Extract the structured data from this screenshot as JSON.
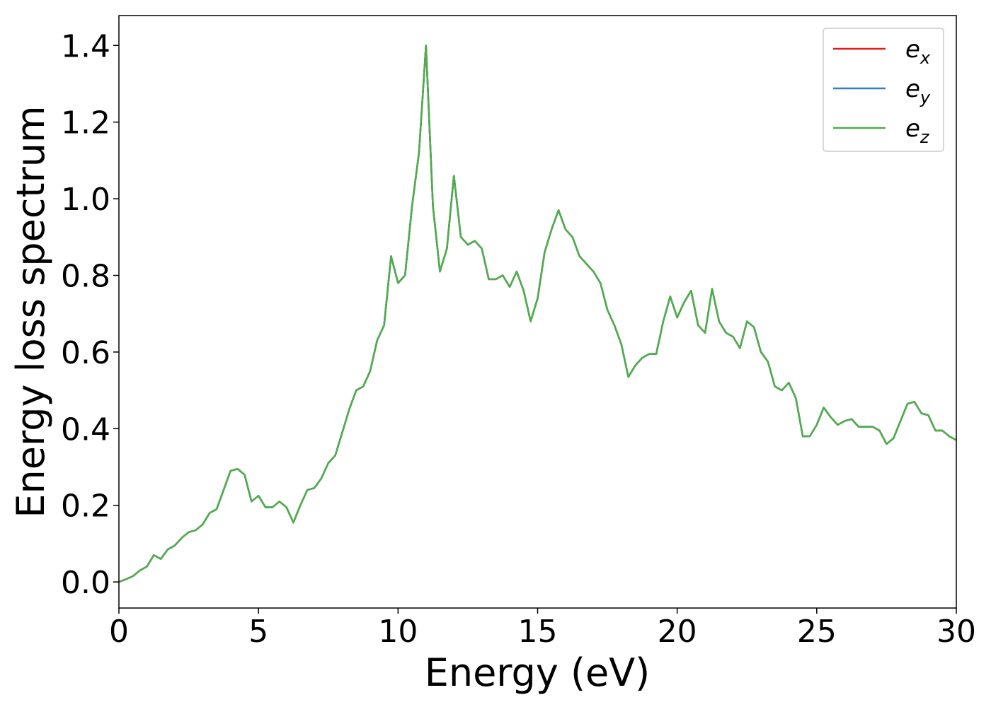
{
  "chart_data": {
    "type": "line",
    "x_label": "Energy (eV)",
    "y_label": "Energy loss spectrum",
    "xlim": [
      0,
      30
    ],
    "ylim": [
      -0.068,
      1.478
    ],
    "xticks": [
      0,
      5,
      10,
      15,
      20,
      25,
      30
    ],
    "yticks": [
      {
        "value": 0,
        "label": "0.0"
      },
      0.2,
      0.4,
      0.6,
      0.8,
      {
        "value": 1,
        "label": "1.0"
      },
      1.2,
      1.4
    ],
    "legend": "upper right",
    "x": [
      0,
      0.25,
      0.5,
      0.75,
      1,
      1.25,
      1.5,
      1.75,
      2,
      2.25,
      2.5,
      2.75,
      3,
      3.25,
      3.5,
      3.75,
      4,
      4.25,
      4.5,
      4.75,
      5,
      5.25,
      5.5,
      5.75,
      6,
      6.25,
      6.5,
      6.75,
      7,
      7.25,
      7.5,
      7.75,
      8,
      8.25,
      8.5,
      8.75,
      9,
      9.25,
      9.5,
      9.75,
      10,
      10.25,
      10.5,
      10.75,
      11,
      11.25,
      11.5,
      11.75,
      12,
      12.25,
      12.5,
      12.75,
      13,
      13.25,
      13.5,
      13.75,
      14,
      14.25,
      14.5,
      14.75,
      15,
      15.25,
      15.5,
      15.75,
      16,
      16.25,
      16.5,
      16.75,
      17,
      17.25,
      17.5,
      17.75,
      18,
      18.25,
      18.5,
      18.75,
      19,
      19.25,
      19.5,
      19.75,
      20,
      20.25,
      20.5,
      20.75,
      21,
      21.25,
      21.5,
      21.75,
      22,
      22.25,
      22.5,
      22.75,
      23,
      23.25,
      23.5,
      23.75,
      24,
      24.25,
      24.5,
      24.75,
      25,
      25.25,
      25.5,
      25.75,
      26,
      26.25,
      26.5,
      26.75,
      27,
      27.25,
      27.5,
      27.75,
      28,
      28.25,
      28.5,
      28.75,
      29,
      29.25,
      29.5,
      29.75,
      30
    ],
    "series": [
      {
        "name": "e_x",
        "color": "#e41a1c",
        "values": [
          0,
          0.007,
          0.015,
          0.03,
          0.04,
          0.07,
          0.06,
          0.085,
          0.095,
          0.115,
          0.13,
          0.135,
          0.15,
          0.18,
          0.19,
          0.24,
          0.29,
          0.295,
          0.28,
          0.21,
          0.225,
          0.195,
          0.195,
          0.21,
          0.195,
          0.155,
          0.2,
          0.24,
          0.245,
          0.27,
          0.31,
          0.33,
          0.39,
          0.45,
          0.5,
          0.51,
          0.55,
          0.63,
          0.67,
          0.85,
          0.78,
          0.8,
          0.98,
          1.12,
          1.4,
          0.98,
          0.81,
          0.87,
          1.06,
          0.9,
          0.88,
          0.89,
          0.87,
          0.79,
          0.79,
          0.8,
          0.77,
          0.81,
          0.76,
          0.68,
          0.74,
          0.86,
          0.92,
          0.97,
          0.92,
          0.9,
          0.85,
          0.83,
          0.81,
          0.78,
          0.71,
          0.67,
          0.62,
          0.535,
          0.565,
          0.585,
          0.595,
          0.595,
          0.68,
          0.745,
          0.69,
          0.73,
          0.76,
          0.67,
          0.65,
          0.765,
          0.68,
          0.65,
          0.64,
          0.61,
          0.68,
          0.665,
          0.6,
          0.575,
          0.51,
          0.5,
          0.52,
          0.48,
          0.38,
          0.38,
          0.41,
          0.455,
          0.43,
          0.41,
          0.42,
          0.425,
          0.405,
          0.405,
          0.405,
          0.395,
          0.36,
          0.375,
          0.42,
          0.465,
          0.47,
          0.44,
          0.435,
          0.395,
          0.395,
          0.38,
          0.37
        ]
      },
      {
        "name": "e_y",
        "color": "#377eb8",
        "values": [
          0,
          0.007,
          0.015,
          0.03,
          0.04,
          0.07,
          0.06,
          0.085,
          0.095,
          0.115,
          0.13,
          0.135,
          0.15,
          0.18,
          0.19,
          0.24,
          0.29,
          0.295,
          0.28,
          0.21,
          0.225,
          0.195,
          0.195,
          0.21,
          0.195,
          0.155,
          0.2,
          0.24,
          0.245,
          0.27,
          0.31,
          0.33,
          0.39,
          0.45,
          0.5,
          0.51,
          0.55,
          0.63,
          0.67,
          0.85,
          0.78,
          0.8,
          0.98,
          1.12,
          1.4,
          0.98,
          0.81,
          0.87,
          1.06,
          0.9,
          0.88,
          0.89,
          0.87,
          0.79,
          0.79,
          0.8,
          0.77,
          0.81,
          0.76,
          0.68,
          0.74,
          0.86,
          0.92,
          0.97,
          0.92,
          0.9,
          0.85,
          0.83,
          0.81,
          0.78,
          0.71,
          0.67,
          0.62,
          0.535,
          0.565,
          0.585,
          0.595,
          0.595,
          0.68,
          0.745,
          0.69,
          0.73,
          0.76,
          0.67,
          0.65,
          0.765,
          0.68,
          0.65,
          0.64,
          0.61,
          0.68,
          0.665,
          0.6,
          0.575,
          0.51,
          0.5,
          0.52,
          0.48,
          0.38,
          0.38,
          0.41,
          0.455,
          0.43,
          0.41,
          0.42,
          0.425,
          0.405,
          0.405,
          0.405,
          0.395,
          0.36,
          0.375,
          0.42,
          0.465,
          0.47,
          0.44,
          0.435,
          0.395,
          0.395,
          0.38,
          0.37
        ]
      },
      {
        "name": "e_z",
        "color": "#4daf4a",
        "values": [
          0,
          0.007,
          0.015,
          0.03,
          0.04,
          0.07,
          0.06,
          0.085,
          0.095,
          0.115,
          0.13,
          0.135,
          0.15,
          0.18,
          0.19,
          0.24,
          0.29,
          0.295,
          0.28,
          0.21,
          0.225,
          0.195,
          0.195,
          0.21,
          0.195,
          0.155,
          0.2,
          0.24,
          0.245,
          0.27,
          0.31,
          0.33,
          0.39,
          0.45,
          0.5,
          0.51,
          0.55,
          0.63,
          0.67,
          0.85,
          0.78,
          0.8,
          0.98,
          1.12,
          1.4,
          0.98,
          0.81,
          0.87,
          1.06,
          0.9,
          0.88,
          0.89,
          0.87,
          0.79,
          0.79,
          0.8,
          0.77,
          0.81,
          0.76,
          0.68,
          0.74,
          0.86,
          0.92,
          0.97,
          0.92,
          0.9,
          0.85,
          0.83,
          0.81,
          0.78,
          0.71,
          0.67,
          0.62,
          0.535,
          0.565,
          0.585,
          0.595,
          0.595,
          0.68,
          0.745,
          0.69,
          0.73,
          0.76,
          0.67,
          0.65,
          0.765,
          0.68,
          0.65,
          0.64,
          0.61,
          0.68,
          0.665,
          0.6,
          0.575,
          0.51,
          0.5,
          0.52,
          0.48,
          0.38,
          0.38,
          0.41,
          0.455,
          0.43,
          0.41,
          0.42,
          0.425,
          0.405,
          0.405,
          0.405,
          0.395,
          0.36,
          0.375,
          0.42,
          0.465,
          0.47,
          0.44,
          0.435,
          0.395,
          0.395,
          0.38,
          0.37
        ]
      }
    ]
  }
}
